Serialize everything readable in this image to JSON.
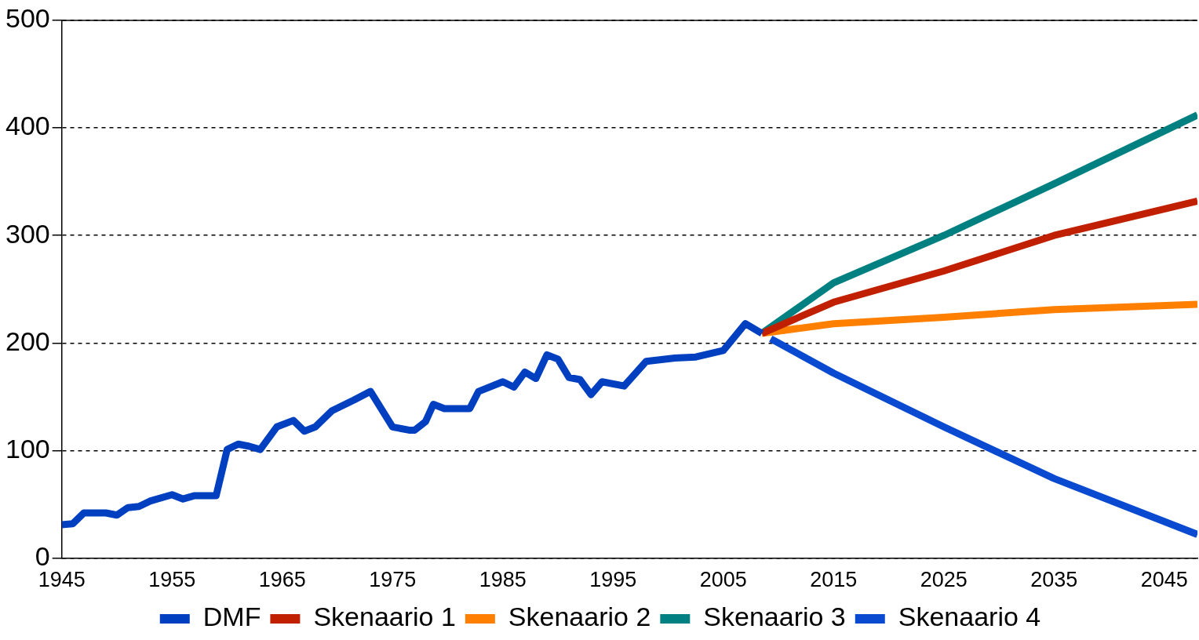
{
  "chart_data": {
    "type": "line",
    "xlim": [
      1945,
      2048
    ],
    "xticks": [
      1945,
      1955,
      1965,
      1975,
      1985,
      1995,
      2005,
      2015,
      2025,
      2035,
      2045
    ],
    "ylim": [
      0,
      500
    ],
    "yticks": [
      0,
      100,
      200,
      300,
      400,
      500
    ],
    "grid": "y",
    "legend": "bottom",
    "marker": "none",
    "series": [
      {
        "name": "DMF",
        "color": "#0040c0",
        "x": [
          1945,
          1946,
          1947,
          1949,
          1950,
          1951,
          1952,
          1953,
          1955,
          1956,
          1957,
          1959,
          1960,
          1961,
          1962,
          1963,
          1964.5,
          1966,
          1967,
          1968,
          1969.5,
          1971.5,
          1973,
          1975,
          1976.5,
          1977,
          1978,
          1978.7,
          1979.7,
          1982,
          1982.8,
          1985,
          1986,
          1987,
          1988,
          1989,
          1990,
          1991,
          1992,
          1993,
          1994,
          1996,
          1998,
          2000.6,
          2002.5,
          2005,
          2007,
          2008.5
        ],
        "values": [
          31,
          32,
          42,
          42,
          40,
          47,
          48,
          53,
          59,
          55,
          58,
          58,
          101,
          106,
          104,
          101,
          122,
          128,
          118,
          122,
          137,
          147,
          155,
          122,
          119,
          119,
          127,
          143,
          139,
          139,
          155,
          164,
          159,
          173,
          167,
          189,
          185,
          168,
          166,
          152,
          164,
          160,
          183,
          186,
          187,
          193,
          218,
          209
        ]
      },
      {
        "name": "Skenaario 1",
        "color": "#c02000",
        "x": [
          2008.5,
          2015,
          2025,
          2035,
          2048
        ],
        "values": [
          209,
          238,
          267,
          300,
          332
        ]
      },
      {
        "name": "Skenaario 2",
        "color": "#ff8000",
        "x": [
          2008.5,
          2015,
          2025,
          2035,
          2048
        ],
        "values": [
          209,
          218,
          224,
          231,
          236
        ]
      },
      {
        "name": "Skenaario 3",
        "color": "#008080",
        "x": [
          2008.5,
          2015,
          2025,
          2035,
          2048
        ],
        "values": [
          209,
          256,
          300,
          348,
          412
        ]
      },
      {
        "name": "Skenaario 4",
        "color": "#0a4ad0",
        "x": [
          2009.3,
          2015,
          2025,
          2035,
          2048
        ],
        "values": [
          204,
          172,
          122,
          74,
          22
        ]
      }
    ]
  }
}
